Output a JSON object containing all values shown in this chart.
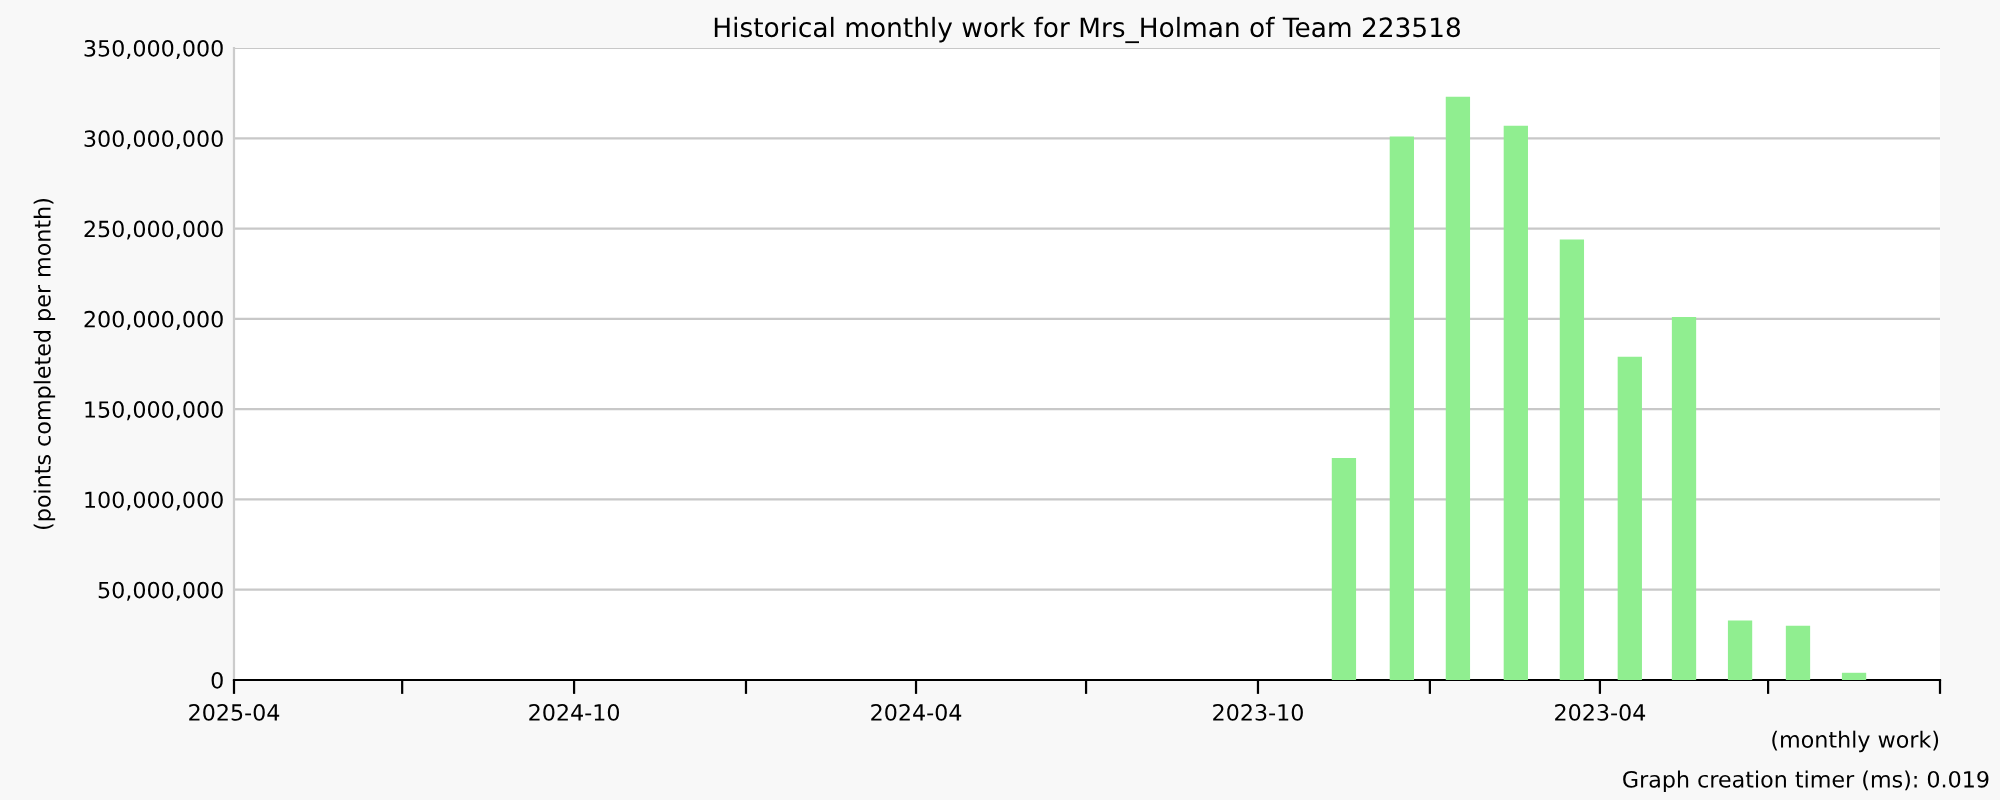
{
  "chart_data": {
    "type": "bar",
    "title": "Historical monthly work for Mrs_Holman of Team 223518",
    "xlabel": "(monthly work)",
    "ylabel": "(points completed per month)",
    "annotations": [
      "Graph creation timer (ms): 0.019"
    ],
    "x": [
      "2023-08-16",
      "2023-07-16",
      "2023-06-16",
      "2023-05-16",
      "2023-04-16",
      "2023-03-16",
      "2023-02-15",
      "2023-01-16",
      "2022-12-16",
      "2022-11-16"
    ],
    "values": [
      123000000,
      301000000,
      323000000,
      307000000,
      244000000,
      179000000,
      201000000,
      33000000,
      30000000,
      4000000
    ],
    "color": "#90ee90",
    "xlim": [
      "2025-04",
      "2022-10"
    ],
    "xticks": [
      {
        "value": "2025-04",
        "label": "2025-04"
      },
      {
        "value": "2025-01",
        "label": null
      },
      {
        "value": "2024-10",
        "label": "2024-10"
      },
      {
        "value": "2024-07",
        "label": null
      },
      {
        "value": "2024-04",
        "label": "2024-04"
      },
      {
        "value": "2024-01",
        "label": null
      },
      {
        "value": "2023-10",
        "label": "2023-10"
      },
      {
        "value": "2023-07",
        "label": null
      },
      {
        "value": "2023-04",
        "label": "2023-04"
      },
      {
        "value": "2023-01",
        "label": null
      },
      {
        "value": "2022-10",
        "label": null
      }
    ],
    "ylim": [
      0,
      350000000
    ],
    "yticks": [
      0,
      {
        "value": 50000000,
        "label": "50,000,000"
      },
      {
        "value": 100000000,
        "label": "100,000,000"
      },
      {
        "value": 150000000,
        "label": "150,000,000"
      },
      {
        "value": 200000000,
        "label": "200,000,000"
      },
      {
        "value": 250000000,
        "label": "250,000,000"
      },
      {
        "value": 300000000,
        "label": "300,000,000"
      },
      {
        "value": 350000000,
        "label": "350,000,000"
      }
    ],
    "grid": "y"
  }
}
